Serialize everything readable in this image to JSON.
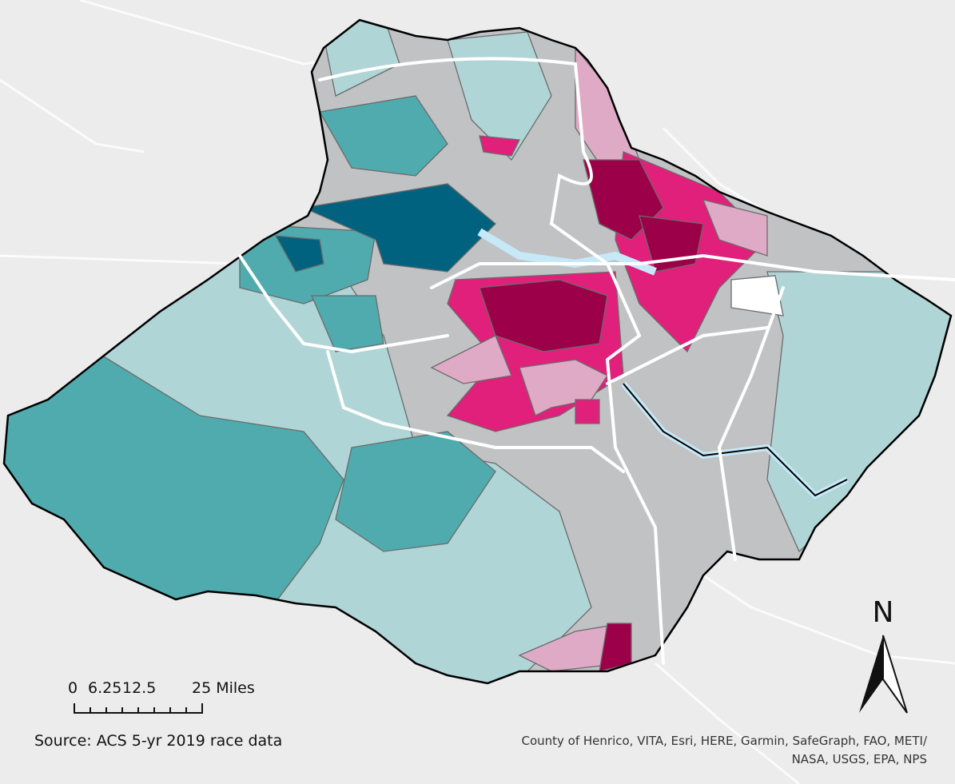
{
  "scale_bar": {
    "labels": [
      "0",
      "6.25",
      "12.5",
      "25 Miles"
    ]
  },
  "north_arrow": {
    "label": "N"
  },
  "source": "Source: ACS 5-yr 2019 race data",
  "attribution": [
    "County of Henrico, VITA, Esri, HERE, Garmin, SafeGraph, FAO, METI/",
    "NASA, USGS, EPA, NPS"
  ]
}
